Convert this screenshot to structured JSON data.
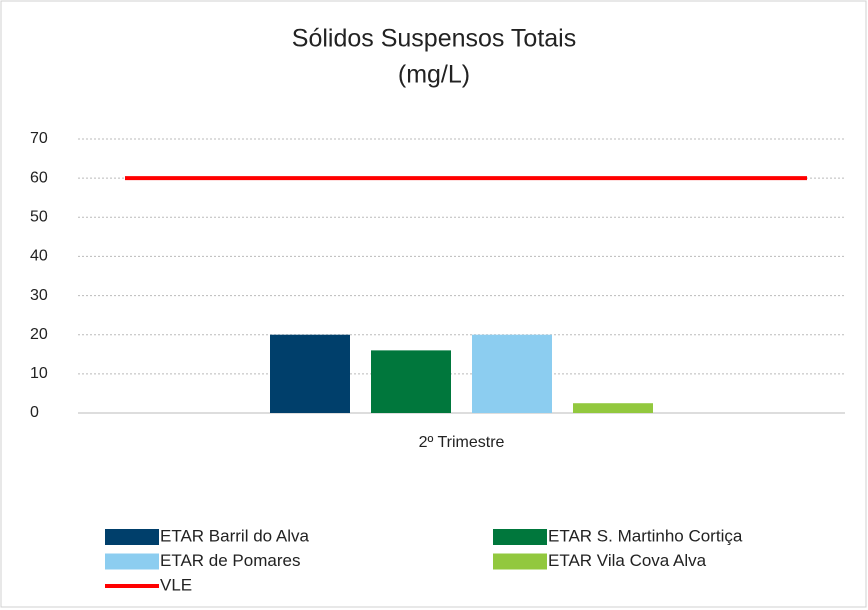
{
  "chart_data": {
    "type": "bar",
    "title": [
      "Sólidos Suspensos Totais",
      "(mg/L)"
    ],
    "categories": [
      "2º Trimestre"
    ],
    "series": [
      {
        "name": "ETAR Barril do Alva",
        "color": "#003f6b",
        "values": [
          20
        ]
      },
      {
        "name": "ETAR S. Martinho Cortiça",
        "color": "#00773c",
        "values": [
          16
        ]
      },
      {
        "name": "ETAR de Pomares",
        "color": "#8ccdf0",
        "values": [
          20
        ]
      },
      {
        "name": "ETAR Vila Cova Alva",
        "color": "#92c83e",
        "values": [
          2.5
        ]
      },
      {
        "name": "VLE",
        "color": "#ff0000",
        "values": [
          60
        ],
        "type": "line"
      }
    ],
    "ylim": [
      0,
      70
    ],
    "yticks": [
      0,
      10,
      20,
      30,
      40,
      50,
      60,
      70
    ],
    "grid": true,
    "legend": "bottom"
  }
}
